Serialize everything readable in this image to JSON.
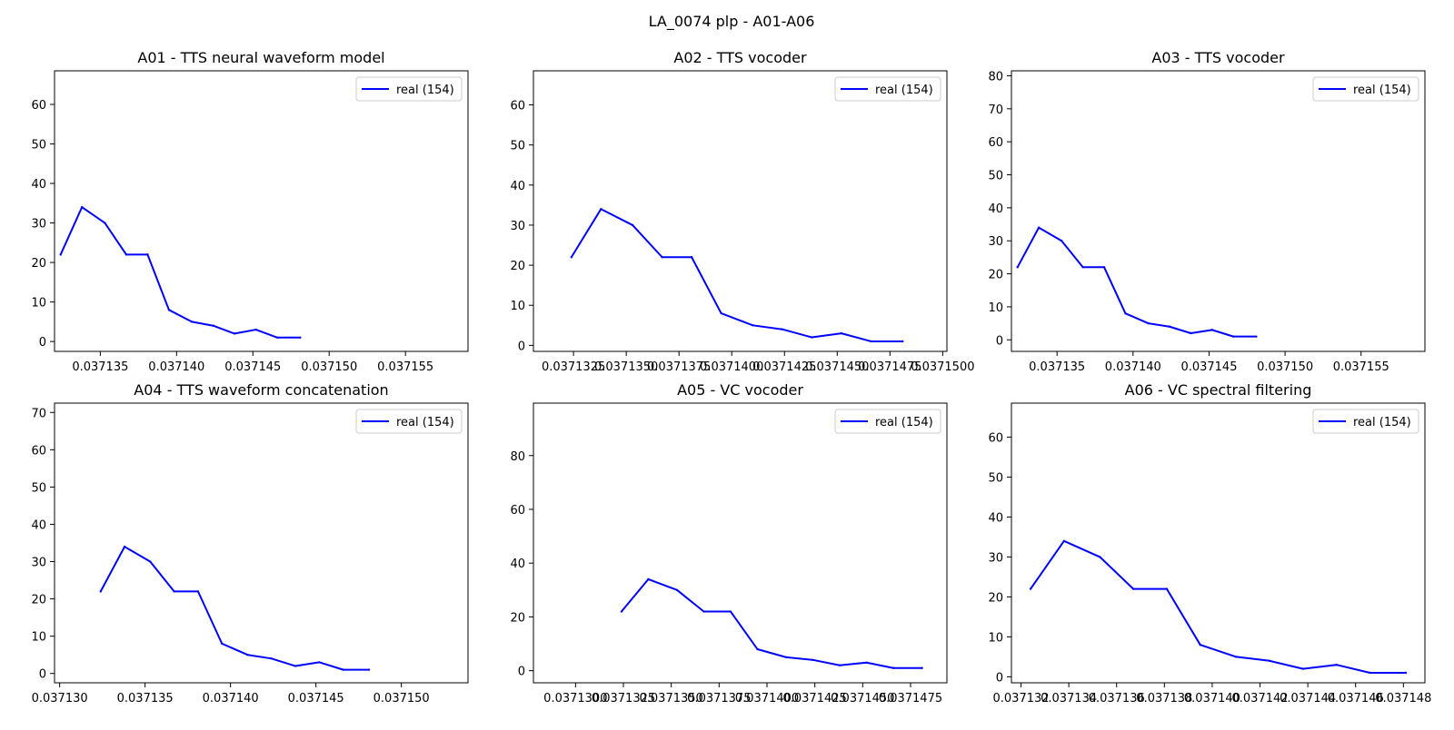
{
  "figure": {
    "title": "LA_0074 plp - A01-A06"
  },
  "style": {
    "line_color": "#0000ff",
    "axes_color": "#000000",
    "background": "#ffffff"
  },
  "chart_data": [
    {
      "type": "line",
      "title": "A01 - TTS neural waveform model",
      "xlim": [
        0.037132,
        0.0371591
      ],
      "ylim": [
        -2.5,
        68.5
      ],
      "xticks": [
        0.037135,
        0.03714,
        0.037145,
        0.03715,
        0.037155
      ],
      "xtick_labels": [
        "0.037135",
        "0.037140",
        "0.037145",
        "0.037150",
        "0.037155"
      ],
      "yticks": [
        0,
        10,
        20,
        30,
        40,
        50,
        60
      ],
      "legend_loc": "upper right",
      "grid": false,
      "series": [
        {
          "name": "real (154)",
          "x": [
            0.0371324,
            0.0371338,
            0.0371353,
            0.0371367,
            0.0371381,
            0.0371395,
            0.037141,
            0.0371424,
            0.0371438,
            0.0371452,
            0.0371466,
            0.0371481
          ],
          "y": [
            22,
            34,
            30,
            22,
            22,
            8,
            5,
            4,
            2,
            3,
            1,
            1
          ]
        }
      ]
    },
    {
      "type": "line",
      "title": "A02 - TTS vocoder",
      "xlim": [
        0.0371306,
        0.0371502
      ],
      "ylim": [
        -1.5,
        68.5
      ],
      "xticks": [
        0.0371325,
        0.037135,
        0.0371375,
        0.03714,
        0.0371425,
        0.037145,
        0.0371475,
        0.03715
      ],
      "xtick_labels": [
        "0.0371325",
        "0.0371350",
        "0.0371375",
        "0.0371400",
        "0.0371425",
        "0.0371450",
        "0.0371475",
        "0.0371500"
      ],
      "yticks": [
        0,
        10,
        20,
        30,
        40,
        50,
        60
      ],
      "legend_loc": "upper right",
      "grid": false,
      "series": [
        {
          "name": "real (154)",
          "x": [
            0.0371324,
            0.0371338,
            0.0371353,
            0.0371367,
            0.0371381,
            0.0371395,
            0.037141,
            0.0371424,
            0.0371438,
            0.0371452,
            0.0371466,
            0.0371481
          ],
          "y": [
            22,
            34,
            30,
            22,
            22,
            8,
            5,
            4,
            2,
            3,
            1,
            1
          ]
        }
      ]
    },
    {
      "type": "line",
      "title": "A03 - TTS vocoder",
      "xlim": [
        0.037132,
        0.0371592
      ],
      "ylim": [
        -3.5,
        81.5
      ],
      "xticks": [
        0.037135,
        0.03714,
        0.037145,
        0.03715,
        0.037155
      ],
      "xtick_labels": [
        "0.037135",
        "0.037140",
        "0.037145",
        "0.037150",
        "0.037155"
      ],
      "yticks": [
        0,
        10,
        20,
        30,
        40,
        50,
        60,
        70,
        80
      ],
      "legend_loc": "upper right",
      "grid": false,
      "series": [
        {
          "name": "real (154)",
          "x": [
            0.0371324,
            0.0371338,
            0.0371353,
            0.0371367,
            0.0371381,
            0.0371395,
            0.037141,
            0.0371424,
            0.0371438,
            0.0371452,
            0.0371466,
            0.0371481
          ],
          "y": [
            22,
            34,
            30,
            22,
            22,
            8,
            5,
            4,
            2,
            3,
            1,
            1
          ]
        }
      ]
    },
    {
      "type": "line",
      "title": "A04 - TTS waveform concatenation",
      "xlim": [
        0.0371297,
        0.0371539
      ],
      "ylim": [
        -2.5,
        72.5
      ],
      "xticks": [
        0.03713,
        0.037135,
        0.03714,
        0.037145,
        0.03715
      ],
      "xtick_labels": [
        "0.037130",
        "0.037135",
        "0.037140",
        "0.037145",
        "0.037150"
      ],
      "yticks": [
        0,
        10,
        20,
        30,
        40,
        50,
        60,
        70
      ],
      "legend_loc": "upper right",
      "grid": false,
      "series": [
        {
          "name": "real (154)",
          "x": [
            0.0371324,
            0.0371338,
            0.0371353,
            0.0371367,
            0.0371381,
            0.0371395,
            0.037141,
            0.0371424,
            0.0371438,
            0.0371452,
            0.0371466,
            0.0371481
          ],
          "y": [
            22,
            34,
            30,
            22,
            22,
            8,
            5,
            4,
            2,
            3,
            1,
            1
          ]
        }
      ]
    },
    {
      "type": "line",
      "title": "A05 - VC vocoder",
      "xlim": [
        0.0371278,
        0.0371494
      ],
      "ylim": [
        -4.5,
        99.5
      ],
      "xticks": [
        0.03713,
        0.0371325,
        0.037135,
        0.0371375,
        0.03714,
        0.0371425,
        0.037145,
        0.0371475
      ],
      "xtick_labels": [
        "0.0371300",
        "0.0371325",
        "0.0371350",
        "0.0371375",
        "0.0371400",
        "0.0371425",
        "0.0371450",
        "0.0371475"
      ],
      "yticks": [
        0,
        20,
        40,
        60,
        80
      ],
      "legend_loc": "upper right",
      "grid": false,
      "series": [
        {
          "name": "real (154)",
          "x": [
            0.0371324,
            0.0371338,
            0.0371353,
            0.0371367,
            0.0371381,
            0.0371395,
            0.037141,
            0.0371424,
            0.0371438,
            0.0371452,
            0.0371466,
            0.0371481
          ],
          "y": [
            22,
            34,
            30,
            22,
            22,
            8,
            5,
            4,
            2,
            3,
            1,
            1
          ]
        }
      ]
    },
    {
      "type": "line",
      "title": "A06 - VC spectral filtering",
      "xlim": [
        0.0371316,
        0.0371489
      ],
      "ylim": [
        -1.5,
        68.5
      ],
      "xticks": [
        0.037132,
        0.037134,
        0.037136,
        0.037138,
        0.03714,
        0.037142,
        0.037144,
        0.037146,
        0.037148
      ],
      "xtick_labels": [
        "0.037132",
        "0.037134",
        "0.037136",
        "0.037138",
        "0.037140",
        "0.037142",
        "0.037144",
        "0.037146",
        "0.037148"
      ],
      "yticks": [
        0,
        10,
        20,
        30,
        40,
        50,
        60
      ],
      "legend_loc": "upper right",
      "grid": false,
      "series": [
        {
          "name": "real (154)",
          "x": [
            0.0371324,
            0.0371338,
            0.0371353,
            0.0371367,
            0.0371381,
            0.0371395,
            0.037141,
            0.0371424,
            0.0371438,
            0.0371452,
            0.0371466,
            0.0371481
          ],
          "y": [
            22,
            34,
            30,
            22,
            22,
            8,
            5,
            4,
            2,
            3,
            1,
            1
          ]
        }
      ]
    }
  ]
}
